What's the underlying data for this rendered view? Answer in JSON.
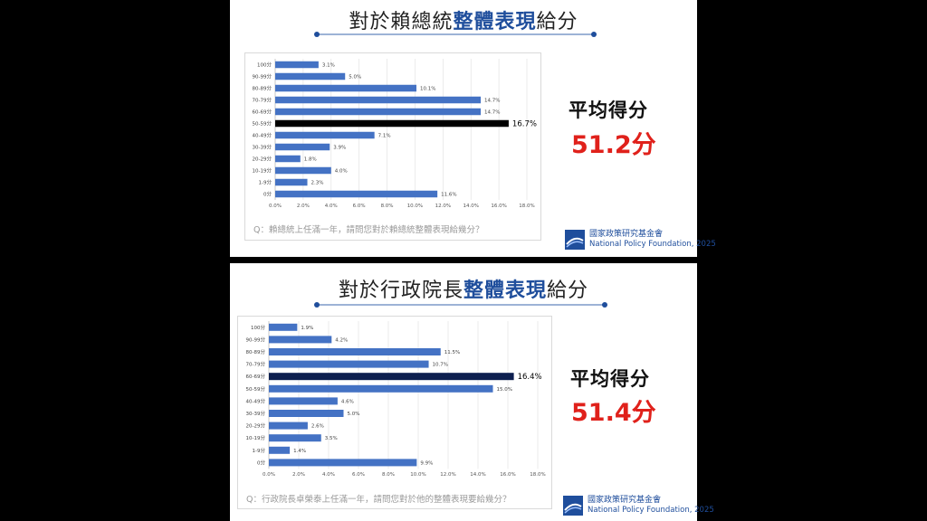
{
  "panels": [
    {
      "title_pre": "對於賴總統",
      "title_hl": "整體表現",
      "title_post": "給分",
      "question": "Q：賴總統上任滿一年，請問您對於賴總統整體表現給幾分？",
      "avg_label": "平均得分",
      "avg_value": "51.2分",
      "org_zh": "國家政策研究基金會",
      "org_en": "National Policy Foundation, 2025"
    },
    {
      "title_pre": "對於行政院長",
      "title_hl": "整體表現",
      "title_post": "給分",
      "question": "Q：行政院長卓榮泰上任滿一年，請問您對於他的整體表現要給幾分？",
      "avg_label": "平均得分",
      "avg_value": "51.4分",
      "org_zh": "國家政策研究基金會",
      "org_en": "National Policy Foundation, 2025"
    }
  ],
  "chart_data": [
    {
      "type": "bar",
      "orientation": "horizontal",
      "categories": [
        "100分",
        "90-99分",
        "80-89分",
        "70-79分",
        "60-69分",
        "50-59分",
        "40-49分",
        "30-39分",
        "20-29分",
        "10-19分",
        "1-9分",
        "0分"
      ],
      "values": [
        3.1,
        5.0,
        10.1,
        14.7,
        14.7,
        16.7,
        7.1,
        3.9,
        1.8,
        4.0,
        2.3,
        11.6
      ],
      "value_labels": [
        "3.1%",
        "5.0%",
        "10.1%",
        "14.7%",
        "14.7%",
        "16.7%",
        "7.1%",
        "3.9%",
        "1.8%",
        "4.0%",
        "2.3%",
        "11.6%"
      ],
      "highlight_index": 5,
      "xlim": [
        0,
        18
      ],
      "xticks": [
        "0.0%",
        "2.0%",
        "4.0%",
        "6.0%",
        "8.0%",
        "10.0%",
        "12.0%",
        "14.0%",
        "16.0%",
        "18.0%"
      ],
      "grid": true,
      "colors": {
        "bar": "#4472c4",
        "highlight": "#000000"
      }
    },
    {
      "type": "bar",
      "orientation": "horizontal",
      "categories": [
        "100分",
        "90-99分",
        "80-89分",
        "70-79分",
        "60-69分",
        "50-59分",
        "40-49分",
        "30-39分",
        "20-29分",
        "10-19分",
        "1-9分",
        "0分"
      ],
      "values": [
        1.9,
        4.2,
        11.5,
        10.7,
        16.4,
        15.0,
        4.6,
        5.0,
        2.6,
        3.5,
        1.4,
        9.9
      ],
      "value_labels": [
        "1.9%",
        "4.2%",
        "11.5%",
        "10.7%",
        "16.4%",
        "15.0%",
        "4.6%",
        "5.0%",
        "2.6%",
        "3.5%",
        "1.4%",
        "9.9%"
      ],
      "highlight_index": 4,
      "xlim": [
        0,
        18
      ],
      "xticks": [
        "0.0%",
        "2.0%",
        "4.0%",
        "6.0%",
        "8.0%",
        "10.0%",
        "12.0%",
        "14.0%",
        "16.0%",
        "18.0%"
      ],
      "grid": true,
      "colors": {
        "bar": "#4472c4",
        "highlight": "#0d1f4f"
      }
    }
  ]
}
